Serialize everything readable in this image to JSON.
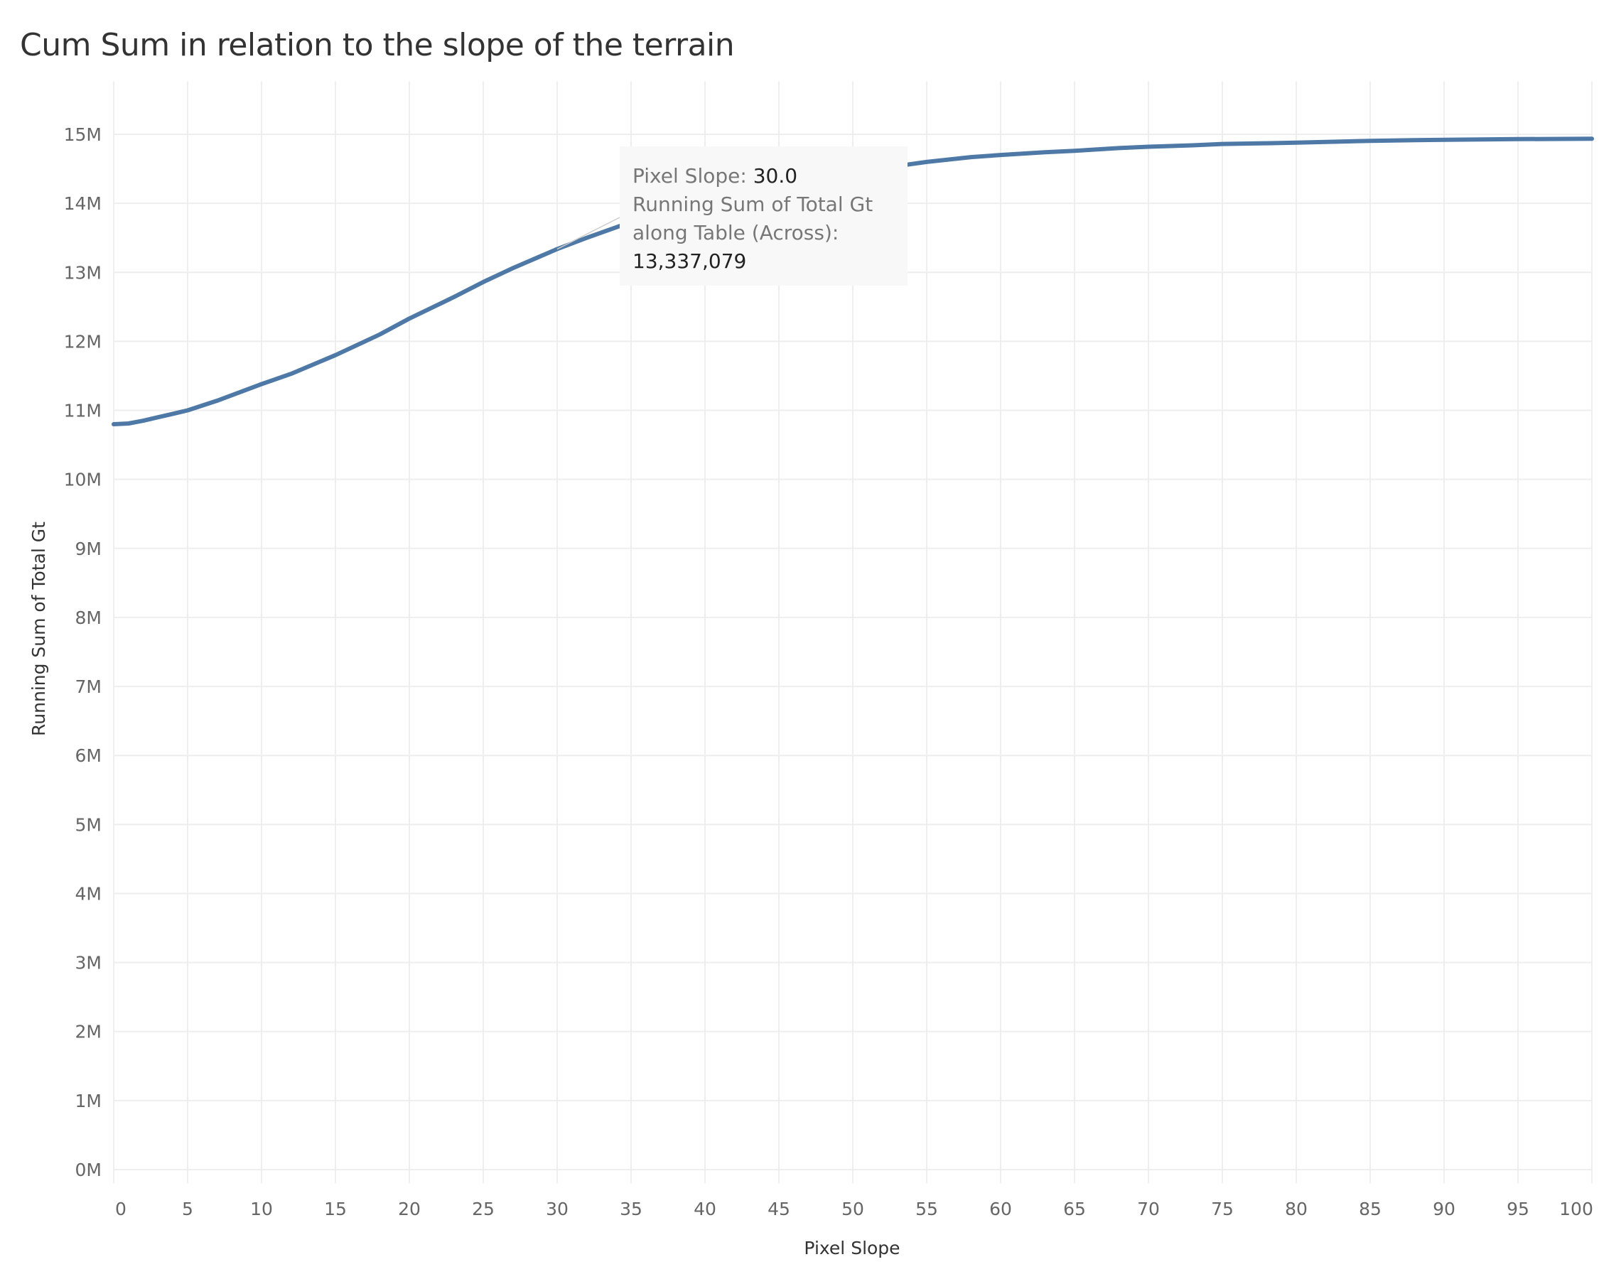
{
  "title": "Cum Sum in relation to the slope of the terrain",
  "colors": {
    "line": "#4e79a7",
    "grid": "#eeeeee",
    "text": "#666666",
    "tooltip_bg": "#f8f8f8"
  },
  "tooltip": {
    "field1_label": "Pixel Slope:",
    "field1_value": "30.0",
    "field2_label_line1": "Running Sum of Total Gt",
    "field2_label_line2": "along Table (Across):",
    "field2_value": "13,337,079"
  },
  "chart_data": {
    "type": "line",
    "title": "Cum Sum in relation to the slope of the terrain",
    "xlabel": "Pixel Slope",
    "ylabel": "Running Sum of Total Gt",
    "xlim": [
      0,
      100
    ],
    "ylim": [
      0,
      15000000
    ],
    "grid": true,
    "x_ticks": [
      0,
      5,
      10,
      15,
      20,
      25,
      30,
      35,
      40,
      45,
      50,
      55,
      60,
      65,
      70,
      75,
      80,
      85,
      90,
      95,
      100
    ],
    "x_tick_labels": [
      "0",
      "5",
      "10",
      "15",
      "20",
      "25",
      "30",
      "35",
      "40",
      "45",
      "50",
      "55",
      "60",
      "65",
      "70",
      "75",
      "80",
      "85",
      "90",
      "95",
      "100"
    ],
    "y_ticks": [
      0,
      1000000,
      2000000,
      3000000,
      4000000,
      5000000,
      6000000,
      7000000,
      8000000,
      9000000,
      10000000,
      11000000,
      12000000,
      13000000,
      14000000,
      15000000
    ],
    "y_tick_labels": [
      "0M",
      "1M",
      "2M",
      "3M",
      "4M",
      "5M",
      "6M",
      "7M",
      "8M",
      "9M",
      "10M",
      "11M",
      "12M",
      "13M",
      "14M",
      "15M"
    ],
    "series": [
      {
        "x": [
          0,
          1,
          2,
          3,
          4,
          5,
          7,
          10,
          12,
          15,
          18,
          20,
          23,
          25,
          27,
          30,
          32,
          35,
          38,
          40,
          43,
          45,
          48,
          50,
          53,
          55,
          58,
          60,
          63,
          65,
          68,
          70,
          73,
          75,
          78,
          80,
          83,
          85,
          88,
          90,
          95,
          100
        ],
        "values": [
          10800000,
          10810000,
          10850000,
          10900000,
          10950000,
          11000000,
          11140000,
          11380000,
          11530000,
          11800000,
          12100000,
          12330000,
          12640000,
          12860000,
          13060000,
          13337079,
          13500000,
          13730000,
          13960000,
          14100000,
          14240000,
          14320000,
          14420000,
          14480000,
          14540000,
          14600000,
          14670000,
          14700000,
          14740000,
          14760000,
          14800000,
          14820000,
          14840000,
          14860000,
          14870000,
          14880000,
          14895000,
          14905000,
          14915000,
          14920000,
          14930000,
          14935000
        ]
      }
    ]
  }
}
